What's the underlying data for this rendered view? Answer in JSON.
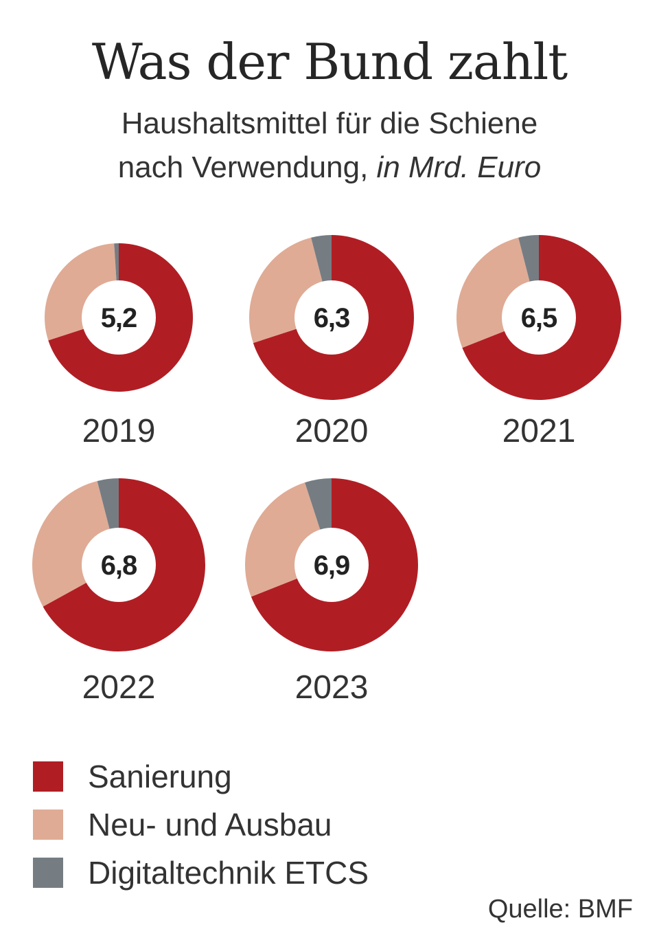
{
  "title": "Was der Bund zahlt",
  "subtitle": {
    "line1": "Haushaltsmittel für die Schiene",
    "line2_text": "nach Verwendung,",
    "line2_unit": "in Mrd. Euro"
  },
  "colors": {
    "sanierung": "#b01e24",
    "neu_ausbau": "#dfab95",
    "etcs": "#757d83",
    "center": "#ffffff"
  },
  "chart_data": {
    "type": "pie",
    "series_names": [
      "Sanierung",
      "Neu- und Ausbau",
      "Digitaltechnik ETCS"
    ],
    "charts": [
      {
        "year": "2019",
        "total": "5,2",
        "shares": [
          0.7,
          0.29,
          0.01
        ]
      },
      {
        "year": "2020",
        "total": "6,3",
        "shares": [
          0.7,
          0.26,
          0.04
        ]
      },
      {
        "year": "2021",
        "total": "6,5",
        "shares": [
          0.69,
          0.27,
          0.04
        ]
      },
      {
        "year": "2022",
        "total": "6,8",
        "shares": [
          0.67,
          0.29,
          0.04
        ]
      },
      {
        "year": "2023",
        "total": "6,9",
        "shares": [
          0.69,
          0.26,
          0.05
        ]
      }
    ]
  },
  "legend": [
    {
      "label": "Sanierung",
      "color": "#b01e24"
    },
    {
      "label": "Neu- und Ausbau",
      "color": "#dfab95"
    },
    {
      "label": "Digitaltechnik ETCS",
      "color": "#757d83"
    }
  ],
  "source": "Quelle: BMF"
}
